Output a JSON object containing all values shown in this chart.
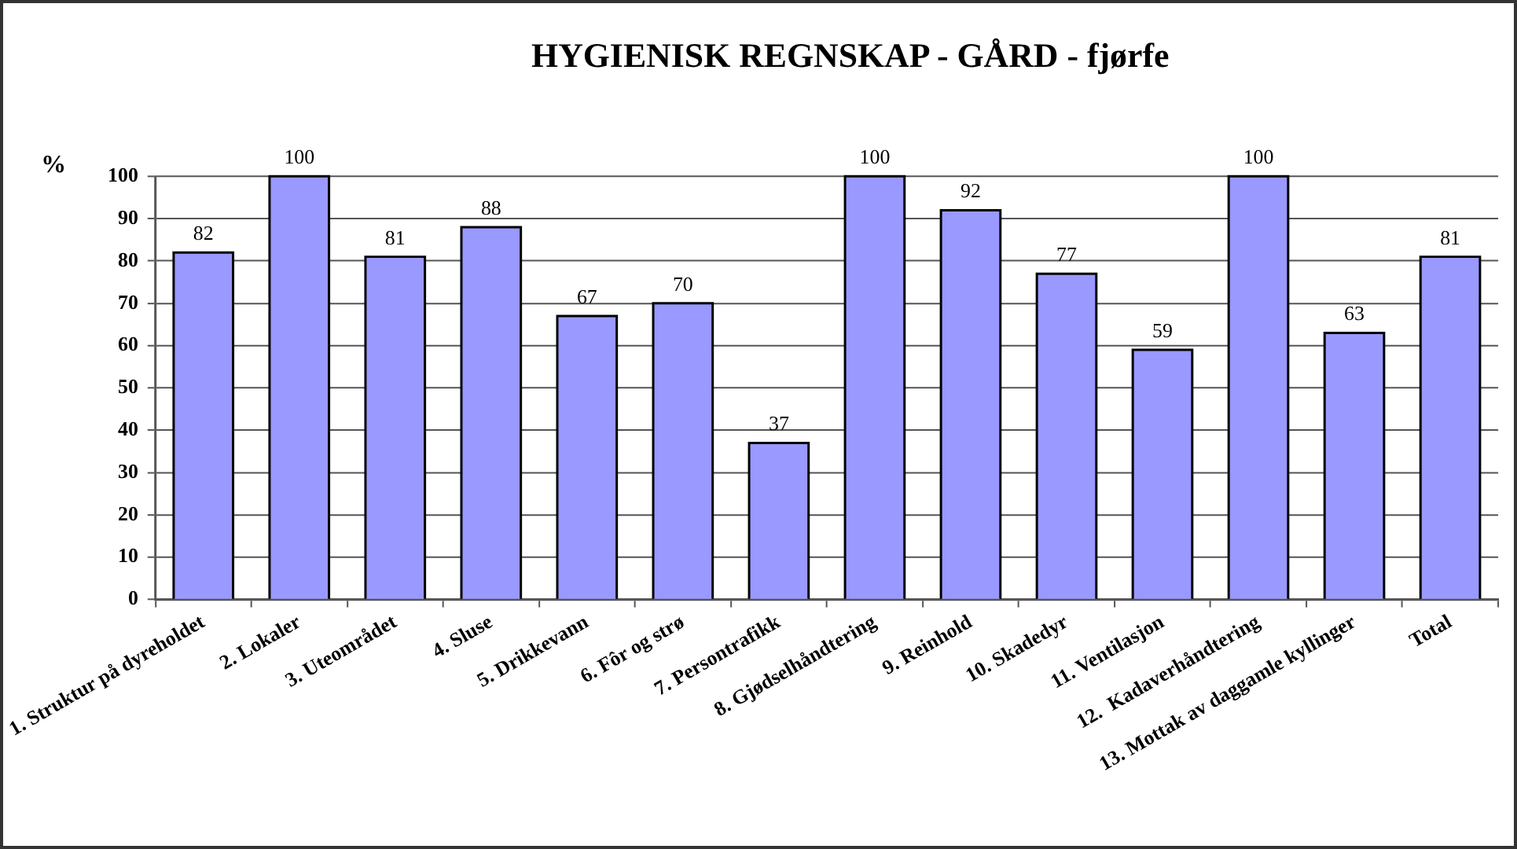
{
  "chart_data": {
    "type": "bar",
    "title": "HYGIENISK REGNSKAP - GÅRD - fjørfe",
    "ylabel": "%",
    "categories": [
      "1. Struktur på dyreholdet",
      "2. Lokaler",
      "3. Uteområdet",
      "4. Sluse",
      "5. Drikkevann",
      "6. Fôr og strø",
      "7. Persontrafikk",
      "8. Gjødselhåndtering",
      "9. Reinhold",
      "10. Skadedyr",
      "11. Ventilasjon",
      "12.  Kadaverhåndtering",
      "13. Mottak av daggamle kyllinger",
      "Total"
    ],
    "values": [
      82,
      100,
      81,
      88,
      67,
      70,
      37,
      100,
      92,
      77,
      59,
      100,
      63,
      81
    ],
    "color": "#9999ff",
    "ylim": [
      0,
      100
    ],
    "yticks": [
      0,
      10,
      20,
      30,
      40,
      50,
      60,
      70,
      80,
      90,
      100
    ],
    "grid": "y",
    "data_labels": true
  }
}
